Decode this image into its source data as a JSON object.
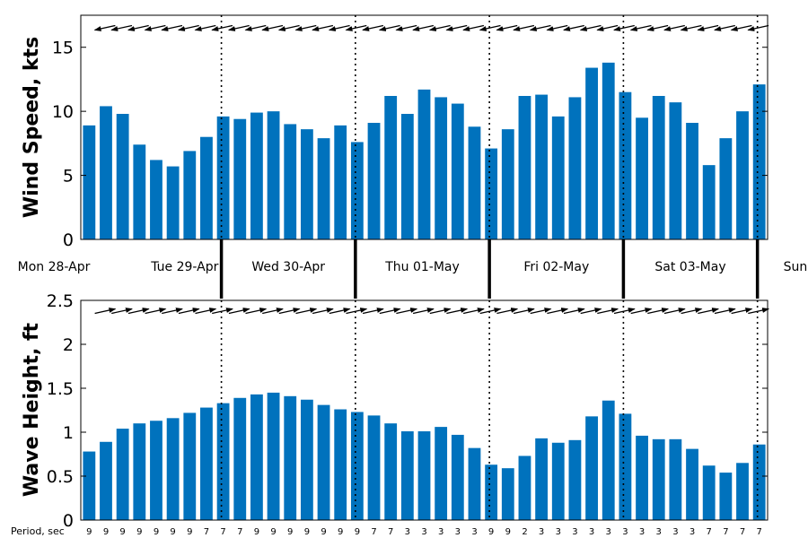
{
  "chart_data": [
    {
      "type": "bar",
      "ylabel": "Wind Speed, kts",
      "ylim": [
        0,
        17.5
      ],
      "yticks": [
        "0",
        "5",
        "10",
        "15"
      ],
      "grid": false,
      "bar_color": "#0072bd",
      "values": [
        8.9,
        10.4,
        9.8,
        7.4,
        6.2,
        5.7,
        6.9,
        8.0,
        9.6,
        9.4,
        9.9,
        10.0,
        9.0,
        8.6,
        7.9,
        8.9,
        7.6,
        9.1,
        11.2,
        9.8,
        11.7,
        11.1,
        10.6,
        8.8,
        7.1,
        8.6,
        11.2,
        11.3,
        9.6,
        11.1,
        13.4,
        13.8,
        11.5,
        9.5,
        11.2,
        10.7,
        9.1,
        5.8,
        7.9,
        10.0,
        12.1
      ],
      "direction_arrows": "leftward, one per 3-hour step"
    },
    {
      "type": "bar",
      "ylabel": "Wave Height, ft",
      "ylim": [
        0,
        2.5
      ],
      "yticks": [
        "0",
        "0.5",
        "1",
        "1.5",
        "2",
        "2.5"
      ],
      "grid": false,
      "bar_color": "#0072bd",
      "values": [
        0.78,
        0.89,
        1.04,
        1.1,
        1.13,
        1.16,
        1.22,
        1.28,
        1.33,
        1.39,
        1.43,
        1.45,
        1.41,
        1.37,
        1.31,
        1.26,
        1.23,
        1.19,
        1.1,
        1.01,
        1.01,
        1.06,
        0.97,
        0.82,
        0.63,
        0.59,
        0.73,
        0.93,
        0.88,
        0.91,
        1.18,
        1.36,
        1.21,
        0.96,
        0.92,
        0.92,
        0.81,
        0.62,
        0.54,
        0.65,
        0.86
      ],
      "period_label": "Period, sec",
      "periods": [
        "9",
        "9",
        "9",
        "9",
        "9",
        "9",
        "9",
        "7",
        "7",
        "7",
        "9",
        "9",
        "9",
        "9",
        "9",
        "9",
        "9",
        "7",
        "7",
        "3",
        "3",
        "3",
        "3",
        "3",
        "9",
        "9",
        "2",
        "3",
        "3",
        "3",
        "3",
        "3",
        "3",
        "3",
        "3",
        "3",
        "3",
        "7",
        "7",
        "7",
        "7"
      ],
      "direction_arrows": "rightward, one per 3-hour step"
    }
  ],
  "day_labels": [
    "Mon 28-Apr",
    "Tue 29-Apr",
    "Wed 30-Apr",
    "Thu 01-May",
    "Fri 02-May",
    "Sat 03-May",
    "Sun"
  ]
}
